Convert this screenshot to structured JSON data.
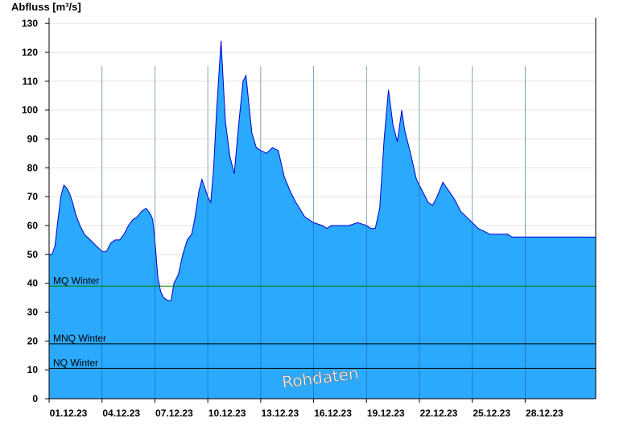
{
  "chart_data": {
    "type": "area",
    "ylabel": "Abfluss [m³/s]",
    "ylim": [
      0,
      132
    ],
    "y_ticks": [
      0,
      10,
      20,
      30,
      40,
      50,
      60,
      70,
      80,
      90,
      100,
      110,
      120,
      130
    ],
    "xlim": [
      "2023-12-01",
      "2023-12-31"
    ],
    "x_ticks": [
      "01.12.23",
      "04.12.23",
      "07.12.23",
      "10.12.23",
      "13.12.23",
      "16.12.23",
      "19.12.23",
      "22.12.23",
      "25.12.23",
      "28.12.23"
    ],
    "grid": "horizontal",
    "fill_color": "#2aa9fd",
    "line_color": "#0000cc",
    "series": [
      {
        "values": [
          [
            "2023-12-01 00:00",
            50
          ],
          [
            "2023-12-01 04:00",
            50
          ],
          [
            "2023-12-01 08:00",
            53
          ],
          [
            "2023-12-01 12:00",
            62
          ],
          [
            "2023-12-01 16:00",
            70
          ],
          [
            "2023-12-01 20:00",
            74
          ],
          [
            "2023-12-02 00:00",
            73
          ],
          [
            "2023-12-02 04:00",
            71
          ],
          [
            "2023-12-02 08:00",
            68
          ],
          [
            "2023-12-02 12:00",
            64
          ],
          [
            "2023-12-02 18:00",
            60
          ],
          [
            "2023-12-03 00:00",
            57
          ],
          [
            "2023-12-03 08:00",
            55
          ],
          [
            "2023-12-03 16:00",
            53
          ],
          [
            "2023-12-03 20:00",
            52
          ],
          [
            "2023-12-04 00:00",
            51
          ],
          [
            "2023-12-04 06:00",
            51
          ],
          [
            "2023-12-04 12:00",
            54
          ],
          [
            "2023-12-04 18:00",
            55
          ],
          [
            "2023-12-05 00:00",
            55
          ],
          [
            "2023-12-05 06:00",
            57
          ],
          [
            "2023-12-05 12:00",
            60
          ],
          [
            "2023-12-05 18:00",
            62
          ],
          [
            "2023-12-06 00:00",
            63
          ],
          [
            "2023-12-06 06:00",
            65
          ],
          [
            "2023-12-06 12:00",
            66
          ],
          [
            "2023-12-06 18:00",
            64
          ],
          [
            "2023-12-06 21:00",
            62
          ],
          [
            "2023-12-07 00:00",
            55
          ],
          [
            "2023-12-07 04:00",
            42
          ],
          [
            "2023-12-07 08:00",
            37
          ],
          [
            "2023-12-07 12:00",
            35
          ],
          [
            "2023-12-07 18:00",
            34
          ],
          [
            "2023-12-07 22:00",
            34
          ],
          [
            "2023-12-08 02:00",
            40
          ],
          [
            "2023-12-08 08:00",
            43
          ],
          [
            "2023-12-08 14:00",
            50
          ],
          [
            "2023-12-08 20:00",
            55
          ],
          [
            "2023-12-09 02:00",
            57
          ],
          [
            "2023-12-09 06:00",
            62
          ],
          [
            "2023-12-09 12:00",
            72
          ],
          [
            "2023-12-09 16:00",
            76
          ],
          [
            "2023-12-09 20:00",
            73
          ],
          [
            "2023-12-10 00:00",
            70
          ],
          [
            "2023-12-10 04:00",
            68
          ],
          [
            "2023-12-10 08:00",
            80
          ],
          [
            "2023-12-10 12:00",
            100
          ],
          [
            "2023-12-10 18:00",
            124
          ],
          [
            "2023-12-11 00:00",
            96
          ],
          [
            "2023-12-11 06:00",
            84
          ],
          [
            "2023-12-11 12:00",
            78
          ],
          [
            "2023-12-11 18:00",
            95
          ],
          [
            "2023-12-12 00:00",
            110
          ],
          [
            "2023-12-12 04:00",
            112
          ],
          [
            "2023-12-12 08:00",
            102
          ],
          [
            "2023-12-12 12:00",
            92
          ],
          [
            "2023-12-12 18:00",
            87
          ],
          [
            "2023-12-13 00:00",
            86
          ],
          [
            "2023-12-13 08:00",
            85
          ],
          [
            "2023-12-13 16:00",
            87
          ],
          [
            "2023-12-14 00:00",
            86
          ],
          [
            "2023-12-14 08:00",
            77
          ],
          [
            "2023-12-14 16:00",
            72
          ],
          [
            "2023-12-15 00:00",
            68
          ],
          [
            "2023-12-15 12:00",
            63
          ],
          [
            "2023-12-16 00:00",
            61
          ],
          [
            "2023-12-16 12:00",
            60
          ],
          [
            "2023-12-16 18:00",
            59
          ],
          [
            "2023-12-17 00:00",
            60
          ],
          [
            "2023-12-17 12:00",
            60
          ],
          [
            "2023-12-18 00:00",
            60
          ],
          [
            "2023-12-18 12:00",
            61
          ],
          [
            "2023-12-19 00:00",
            60
          ],
          [
            "2023-12-19 06:00",
            59
          ],
          [
            "2023-12-19 12:00",
            59
          ],
          [
            "2023-12-19 18:00",
            66
          ],
          [
            "2023-12-20 00:00",
            90
          ],
          [
            "2023-12-20 06:00",
            107
          ],
          [
            "2023-12-20 12:00",
            95
          ],
          [
            "2023-12-20 18:00",
            89
          ],
          [
            "2023-12-21 00:00",
            100
          ],
          [
            "2023-12-21 04:00",
            93
          ],
          [
            "2023-12-21 12:00",
            85
          ],
          [
            "2023-12-21 20:00",
            76
          ],
          [
            "2023-12-22 06:00",
            71
          ],
          [
            "2023-12-22 12:00",
            68
          ],
          [
            "2023-12-22 18:00",
            67
          ],
          [
            "2023-12-23 00:00",
            70
          ],
          [
            "2023-12-23 08:00",
            75
          ],
          [
            "2023-12-23 16:00",
            72
          ],
          [
            "2023-12-24 00:00",
            69
          ],
          [
            "2023-12-24 08:00",
            65
          ],
          [
            "2023-12-24 16:00",
            63
          ],
          [
            "2023-12-25 00:00",
            61
          ],
          [
            "2023-12-25 08:00",
            59
          ],
          [
            "2023-12-25 16:00",
            58
          ],
          [
            "2023-12-26 00:00",
            57
          ],
          [
            "2023-12-27 00:00",
            57
          ],
          [
            "2023-12-27 06:00",
            56
          ],
          [
            "2023-12-28 00:00",
            56
          ],
          [
            "2023-12-29 00:00",
            56
          ],
          [
            "2023-12-30 00:00",
            56
          ],
          [
            "2023-12-31 00:00",
            56
          ]
        ]
      }
    ],
    "reference_lines": [
      {
        "label": "MQ Winter",
        "value": 39,
        "color": "#008000"
      },
      {
        "label": "MNQ Winter",
        "value": 19,
        "color": "#000000"
      },
      {
        "label": "NQ Winter",
        "value": 10.5,
        "color": "#000000"
      }
    ],
    "watermark": "Rohdaten"
  }
}
